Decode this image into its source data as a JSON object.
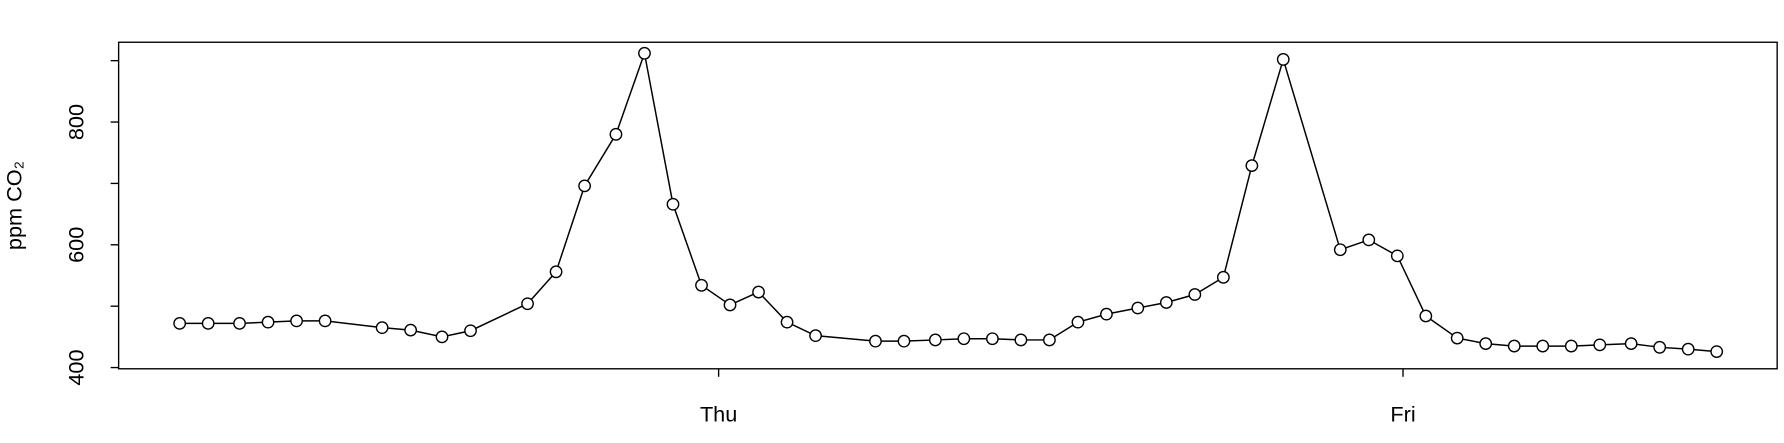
{
  "chart_data": {
    "type": "line",
    "y_label": "ppm CO₂",
    "x": [
      5.1,
      6.1,
      7.2,
      8.2,
      9.2,
      10.2,
      12.2,
      13.2,
      14.3,
      15.3,
      17.3,
      18.3,
      19.3,
      20.4,
      21.4,
      22.4,
      23.4,
      24.4,
      25.4,
      26.4,
      27.4,
      29.5,
      30.5,
      31.6,
      32.6,
      33.6,
      34.6,
      35.6,
      36.6,
      37.6,
      38.7,
      39.7,
      40.7,
      41.7,
      42.7,
      43.8,
      45.8,
      46.8,
      47.8,
      48.8,
      49.9,
      50.9,
      51.9,
      52.9,
      53.9,
      54.9,
      56.0,
      57.0,
      58.0,
      59.0
    ],
    "values": [
      472,
      472,
      472,
      474,
      476,
      476,
      465,
      461,
      450,
      460,
      504,
      556,
      696,
      780,
      912,
      666,
      534,
      502,
      523,
      474,
      452,
      443,
      443,
      445,
      447,
      447,
      445,
      445,
      474,
      487,
      497,
      506,
      519,
      547,
      729,
      902,
      592,
      608,
      582,
      484,
      448,
      439,
      435,
      435,
      435,
      437,
      439,
      433,
      430,
      426
    ],
    "color": "#000000",
    "xlim": [
      2.96,
      61.12
    ],
    "xticks": [
      {
        "value": 24,
        "label": "Thu"
      },
      {
        "value": 48,
        "label": "Fri"
      }
    ],
    "ylim": [
      398,
      930
    ],
    "yticks": [
      400,
      600,
      800
    ],
    "yticks_unlabeled": [
      500,
      700,
      900
    ]
  }
}
